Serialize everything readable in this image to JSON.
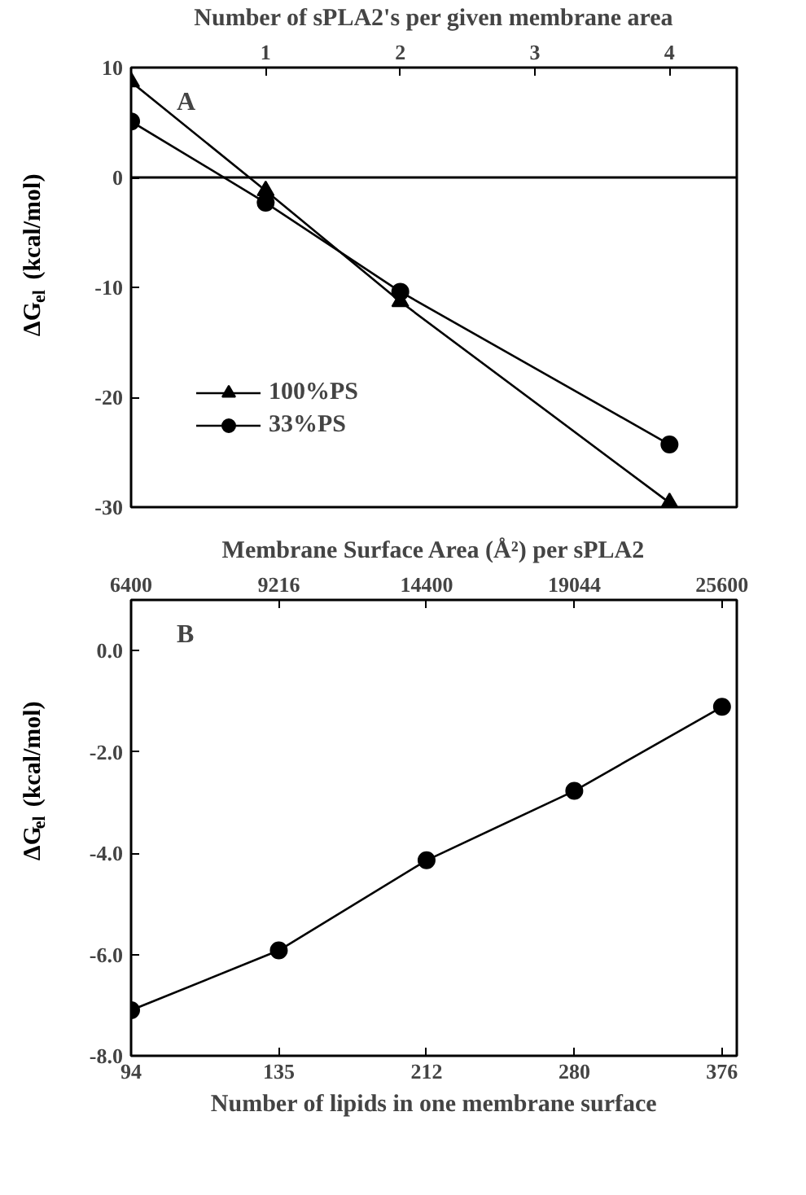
{
  "chart_data": [
    {
      "type": "line",
      "xlabel": "Number of sPLA2's per given membrane area",
      "ylabel": "ΔG$_{el}$ (kcal/mol)",
      "x": [
        0,
        1,
        2,
        4
      ],
      "xlim": [
        0,
        4.5
      ],
      "xticks": [
        1,
        2,
        3,
        4
      ],
      "ylim": [
        -30,
        10
      ],
      "yticks": [
        -30,
        -20,
        -10,
        0,
        10
      ],
      "grid": false,
      "legend": "bottom left",
      "annotations": [
        "A"
      ],
      "ref_lines": [
        {
          "axis": "y",
          "value": 0,
          "color": "#000000"
        }
      ],
      "series": [
        {
          "name": "100%PS",
          "color": "#000000",
          "marker": "triangle",
          "values": [
            8.7,
            -1.2,
            -11.3,
            -29.6
          ]
        },
        {
          "name": "33%PS",
          "color": "#000000",
          "marker": "circle",
          "values": [
            5.1,
            -2.3,
            -10.4,
            -24.3
          ]
        }
      ]
    },
    {
      "type": "line",
      "xlabel": "Number of lipids in one membrane surface",
      "x2label": "Membrane Surface Area (Å²) per sPLA2",
      "ylabel": "ΔG$_{el}$ (kcal/mol)",
      "categories": [
        "94",
        "135",
        "212",
        "280",
        "376"
      ],
      "ylim": [
        -8,
        1
      ],
      "yticks": [
        {
          "value": -8,
          "label": "-8.0"
        },
        {
          "value": -6,
          "label": "-6.0"
        },
        {
          "value": -4,
          "label": "-4.0"
        },
        {
          "value": -2,
          "label": "-2.0"
        },
        {
          "value": 0,
          "label": "0.0"
        }
      ],
      "grid": false,
      "annotations": [
        "B",
        {
          "text": "6400",
          "x": "94"
        },
        {
          "text": "9216",
          "x": "135"
        },
        {
          "text": "14400",
          "x": "212"
        },
        {
          "text": "19044",
          "x": "280"
        },
        {
          "text": "25600",
          "x": "376"
        }
      ],
      "series": [
        {
          "color": "#000000",
          "marker": "circle",
          "values": [
            -7.1,
            -5.92,
            -4.14,
            -2.77,
            -1.11
          ]
        }
      ]
    }
  ]
}
